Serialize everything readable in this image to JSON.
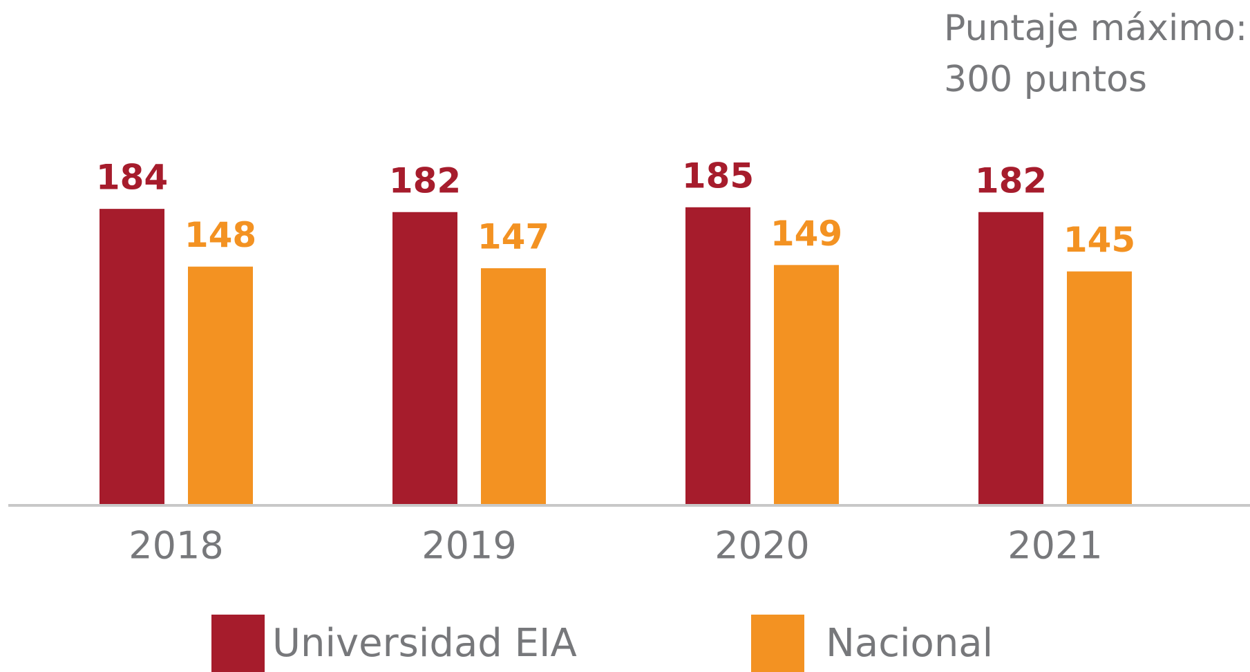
{
  "chart_data": {
    "type": "bar",
    "annotation": [
      "Puntaje máximo:",
      "300 puntos"
    ],
    "categories": [
      "2018",
      "2019",
      "2020",
      "2021"
    ],
    "series": [
      {
        "name": "Universidad EIA",
        "color": "#a61c2c",
        "values": [
          184,
          182,
          185,
          182
        ]
      },
      {
        "name": "Nacional",
        "color": "#f39222",
        "values": [
          148,
          147,
          149,
          145
        ]
      }
    ]
  }
}
